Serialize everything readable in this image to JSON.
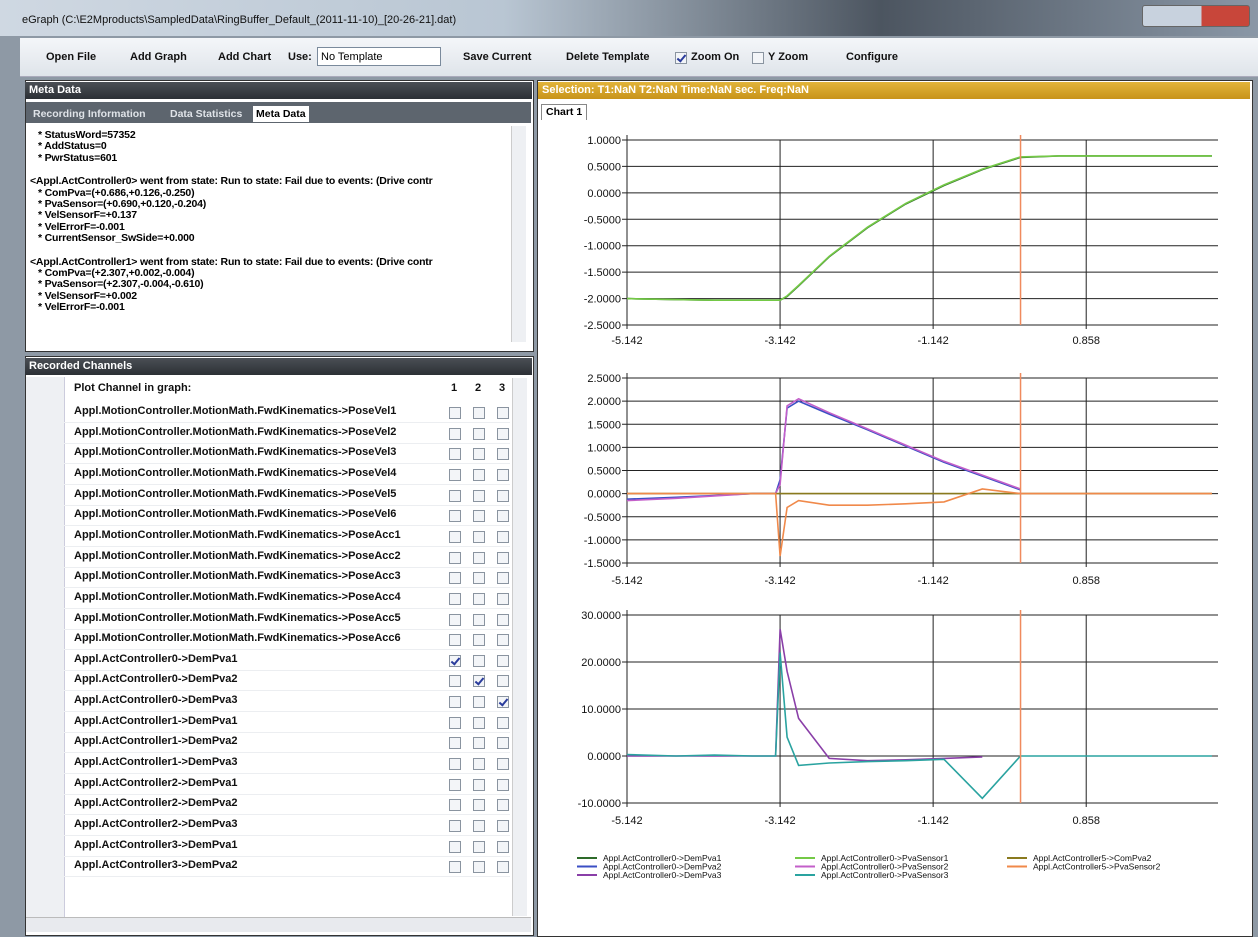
{
  "window": {
    "title": "eGraph (C:\\E2Mproducts\\SampledData\\RingBuffer_Default_(2011-11-10)_[20-26-21].dat)"
  },
  "toolbar": {
    "open_file": "Open File",
    "add_graph": "Add Graph",
    "add_chart": "Add Chart",
    "use": "Use:",
    "template": "No Template",
    "save_current": "Save Current",
    "delete_template": "Delete Template",
    "zoom_on": "Zoom On",
    "zoom_on_checked": true,
    "y_zoom": "Y Zoom",
    "y_zoom_checked": false,
    "configure": "Configure"
  },
  "meta_panel": {
    "title": "Meta Data",
    "tabs": [
      "Recording Information",
      "Data Statistics",
      "Meta Data"
    ],
    "active_tab": 2,
    "blocks": [
      [
        "* StatusWord=57352",
        "* AddStatus=0",
        "* PwrStatus=601"
      ],
      [
        "<Appl.ActController0> went from state: Run to state: Fail due to events: (Drive contr",
        "* ComPva=(+0.686,+0.126,-0.250)",
        "* PvaSensor=(+0.690,+0.120,-0.204)",
        "* VelSensorF=+0.137",
        "* VelErrorF=-0.001",
        "* CurrentSensor_SwSide=+0.000"
      ],
      [
        "<Appl.ActController1> went from state: Run to state: Fail due to events: (Drive contr",
        "* ComPva=(+2.307,+0.002,-0.004)",
        "* PvaSensor=(+2.307,-0.004,-0.610)",
        "* VelSensorF=+0.002",
        "* VelErrorF=-0.001"
      ]
    ]
  },
  "channels_panel": {
    "title": "Recorded Channels",
    "header": "Plot Channel in graph:",
    "columns": [
      "1",
      "2",
      "3"
    ],
    "rows": [
      {
        "name": "Appl.MotionController.MotionMath.FwdKinematics->PoseVel1",
        "plot": [
          false,
          false,
          false
        ]
      },
      {
        "name": "Appl.MotionController.MotionMath.FwdKinematics->PoseVel2",
        "plot": [
          false,
          false,
          false
        ]
      },
      {
        "name": "Appl.MotionController.MotionMath.FwdKinematics->PoseVel3",
        "plot": [
          false,
          false,
          false
        ]
      },
      {
        "name": "Appl.MotionController.MotionMath.FwdKinematics->PoseVel4",
        "plot": [
          false,
          false,
          false
        ]
      },
      {
        "name": "Appl.MotionController.MotionMath.FwdKinematics->PoseVel5",
        "plot": [
          false,
          false,
          false
        ]
      },
      {
        "name": "Appl.MotionController.MotionMath.FwdKinematics->PoseVel6",
        "plot": [
          false,
          false,
          false
        ]
      },
      {
        "name": "Appl.MotionController.MotionMath.FwdKinematics->PoseAcc1",
        "plot": [
          false,
          false,
          false
        ]
      },
      {
        "name": "Appl.MotionController.MotionMath.FwdKinematics->PoseAcc2",
        "plot": [
          false,
          false,
          false
        ]
      },
      {
        "name": "Appl.MotionController.MotionMath.FwdKinematics->PoseAcc3",
        "plot": [
          false,
          false,
          false
        ]
      },
      {
        "name": "Appl.MotionController.MotionMath.FwdKinematics->PoseAcc4",
        "plot": [
          false,
          false,
          false
        ]
      },
      {
        "name": "Appl.MotionController.MotionMath.FwdKinematics->PoseAcc5",
        "plot": [
          false,
          false,
          false
        ]
      },
      {
        "name": "Appl.MotionController.MotionMath.FwdKinematics->PoseAcc6",
        "plot": [
          false,
          false,
          false
        ]
      },
      {
        "name": "Appl.ActController0->DemPva1",
        "plot": [
          true,
          false,
          false
        ]
      },
      {
        "name": "Appl.ActController0->DemPva2",
        "plot": [
          false,
          true,
          false
        ]
      },
      {
        "name": "Appl.ActController0->DemPva3",
        "plot": [
          false,
          false,
          true
        ]
      },
      {
        "name": "Appl.ActController1->DemPva1",
        "plot": [
          false,
          false,
          false
        ]
      },
      {
        "name": "Appl.ActController1->DemPva2",
        "plot": [
          false,
          false,
          false
        ]
      },
      {
        "name": "Appl.ActController1->DemPva3",
        "plot": [
          false,
          false,
          false
        ]
      },
      {
        "name": "Appl.ActController2->DemPva1",
        "plot": [
          false,
          false,
          false
        ]
      },
      {
        "name": "Appl.ActController2->DemPva2",
        "plot": [
          false,
          false,
          false
        ]
      },
      {
        "name": "Appl.ActController2->DemPva3",
        "plot": [
          false,
          false,
          false
        ]
      },
      {
        "name": "Appl.ActController3->DemPva1",
        "plot": [
          false,
          false,
          false
        ]
      },
      {
        "name": "Appl.ActController3->DemPva2",
        "plot": [
          false,
          false,
          false
        ]
      }
    ]
  },
  "chart_panel": {
    "selection": "Selection: T1:NaN T2:NaN Time:NaN sec. Freq:NaN",
    "tab": "Chart 1"
  },
  "chart_data": [
    {
      "type": "line",
      "xlim": [
        -5.142,
        2.58
      ],
      "xticks": [
        -5.142,
        -3.142,
        -1.142,
        0.858
      ],
      "ylim": [
        -2.5,
        1.0
      ],
      "yticks": [
        {
          "value": 1.0,
          "label": "1.0000"
        },
        {
          "value": 0.5,
          "label": "0.5000"
        },
        {
          "value": 0,
          "label": "0.0000"
        },
        {
          "value": -0.5,
          "label": "-0.5000"
        },
        {
          "value": -1.0,
          "label": "-1.0000"
        },
        {
          "value": -1.5,
          "label": "-1.5000"
        },
        {
          "value": -2.0,
          "label": "-2.0000"
        },
        {
          "value": -2.5,
          "label": "-2.5000"
        }
      ],
      "cursor": 0,
      "cursor_color": "#f08a5d",
      "x": [
        -5.142,
        -4.5,
        -4,
        -3.5,
        -3.2,
        -3.142,
        -3.05,
        -2.9,
        -2.5,
        -2.0,
        -1.5,
        -1.0,
        -0.5,
        0,
        0.5,
        1.0,
        1.5,
        2.0,
        2.5
      ],
      "series": [
        {
          "name": "Appl.ActController0->DemPva1",
          "color": "#2e6b2a",
          "values": [
            -2.0,
            -2.02,
            -2.03,
            -2.03,
            -2.03,
            -2.03,
            -1.96,
            -1.76,
            -1.21,
            -0.66,
            -0.21,
            0.14,
            0.44,
            0.67,
            0.7,
            0.7,
            0.7,
            0.7,
            0.7
          ]
        },
        {
          "name": "Appl.ActController0->PvaSensor1",
          "color": "#74c946",
          "values": [
            -2.0,
            -2.02,
            -2.03,
            -2.03,
            -2.03,
            -2.03,
            -1.95,
            -1.75,
            -1.2,
            -0.65,
            -0.2,
            0.15,
            0.45,
            0.68,
            0.7,
            0.7,
            0.7,
            0.7,
            0.7
          ]
        }
      ]
    },
    {
      "type": "line",
      "xlim": [
        -5.142,
        2.58
      ],
      "xticks": [
        -5.142,
        -3.142,
        -1.142,
        0.858
      ],
      "ylim": [
        -1.5,
        2.5
      ],
      "yticks": [
        {
          "value": 2.5,
          "label": "2.5000"
        },
        {
          "value": 2.0,
          "label": "2.0000"
        },
        {
          "value": 1.5,
          "label": "1.5000"
        },
        {
          "value": 1.0,
          "label": "1.0000"
        },
        {
          "value": 0.5,
          "label": "0.5000"
        },
        {
          "value": 0,
          "label": "0.0000"
        },
        {
          "value": -0.5,
          "label": "-0.5000"
        },
        {
          "value": -1.0,
          "label": "-1.0000"
        },
        {
          "value": -1.5,
          "label": "-1.5000"
        }
      ],
      "cursor": 0,
      "cursor_color": "#f08a5d",
      "x": [
        -5.142,
        -4.5,
        -4,
        -3.5,
        -3.2,
        -3.142,
        -3.05,
        -2.9,
        -2.5,
        -2.0,
        -1.5,
        -1.0,
        -0.5,
        0,
        0.5,
        1.0,
        1.5,
        2.0,
        2.5
      ],
      "series": [
        {
          "name": "Appl.ActController0->DemPva2",
          "color": "#3b4fc4",
          "values": [
            -0.12,
            -0.08,
            -0.04,
            0,
            0,
            0.3,
            1.85,
            2.0,
            1.72,
            1.38,
            1.03,
            0.68,
            0.38,
            0.08,
            null,
            null,
            null,
            null,
            null
          ]
        },
        {
          "name": "Appl.ActController0->PvaSensor2",
          "color": "#c35fc9",
          "values": [
            -0.15,
            -0.1,
            -0.05,
            0,
            0,
            0.2,
            1.9,
            2.05,
            1.75,
            1.4,
            1.05,
            0.7,
            0.4,
            0.1,
            null,
            null,
            null,
            null,
            null
          ]
        },
        {
          "name": "Appl.ActController5->ComPva2",
          "color": "#8a7a1e",
          "values": [
            0,
            0,
            0,
            0,
            0,
            0,
            0,
            0,
            0,
            0,
            0,
            0,
            0,
            0,
            0,
            0,
            0,
            0,
            0
          ]
        },
        {
          "name": "Appl.ActController5->PvaSensor2",
          "color": "#f0894a",
          "values": [
            0,
            0,
            0,
            0,
            0,
            -1.35,
            -0.3,
            -0.15,
            -0.25,
            -0.25,
            -0.22,
            -0.18,
            0.1,
            0,
            0,
            0,
            0,
            0,
            0
          ]
        }
      ]
    },
    {
      "type": "line",
      "xlim": [
        -5.142,
        2.58
      ],
      "xticks": [
        -5.142,
        -3.142,
        -1.142,
        0.858
      ],
      "ylim": [
        -10,
        30
      ],
      "yticks": [
        {
          "value": 30,
          "label": "30.0000"
        },
        {
          "value": 20,
          "label": "20.0000"
        },
        {
          "value": 10,
          "label": "10.0000"
        },
        {
          "value": 0,
          "label": "0.0000"
        },
        {
          "value": -10,
          "label": "-10.0000"
        }
      ],
      "cursor": 0,
      "cursor_color": "#f08a5d",
      "x": [
        -5.142,
        -4.5,
        -4,
        -3.5,
        -3.2,
        -3.142,
        -3.05,
        -2.9,
        -2.5,
        -2.0,
        -1.5,
        -1.0,
        -0.5,
        0,
        0.5,
        1.0,
        1.5,
        2.0,
        2.5
      ],
      "series": [
        {
          "name": "Appl.ActController0->DemPva3",
          "color": "#8a3fa8",
          "values": [
            0,
            0,
            0,
            0,
            0,
            27,
            18,
            8,
            -0.5,
            -1,
            -0.8,
            -0.5,
            -0.2,
            null,
            null,
            null,
            null,
            null,
            null
          ]
        },
        {
          "name": "Appl.ActController0->PvaSensor3",
          "color": "#2aa3a0",
          "values": [
            0.3,
            0,
            0.2,
            0,
            0,
            22,
            4,
            -2,
            -1.5,
            -1.2,
            -1,
            -0.7,
            -9,
            0,
            0,
            0,
            0,
            0,
            0
          ]
        }
      ]
    }
  ]
}
